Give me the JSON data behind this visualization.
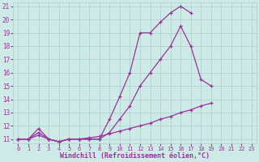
{
  "line1_x": [
    0,
    1,
    2,
    3,
    4,
    5,
    6,
    7,
    8,
    9,
    10,
    11,
    12,
    13,
    14,
    15,
    16,
    17
  ],
  "line1_y": [
    11,
    11,
    11.8,
    11,
    10.8,
    11,
    11,
    11,
    11,
    12.5,
    14.2,
    16.0,
    19.0,
    19.0,
    19.8,
    20.5,
    21.0,
    20.5
  ],
  "line2_x": [
    0,
    1,
    2,
    3,
    4,
    5,
    6,
    7,
    8,
    9,
    10,
    11,
    12,
    13,
    14,
    15,
    16,
    17,
    18,
    19,
    20,
    21,
    22
  ],
  "line2_y": [
    11,
    11,
    11.5,
    11,
    10.8,
    11,
    11,
    11,
    11,
    11.5,
    12.5,
    13.5,
    15.0,
    16.0,
    17.0,
    18.0,
    19.5,
    18.0,
    15.5,
    15.0,
    null,
    null,
    null
  ],
  "line3_x": [
    0,
    1,
    2,
    3,
    4,
    5,
    6,
    7,
    8,
    9,
    10,
    11,
    12,
    13,
    14,
    15,
    16,
    17,
    18,
    19,
    20,
    21,
    22,
    23
  ],
  "line3_y": [
    11,
    11,
    11.3,
    11,
    10.8,
    11,
    11,
    11.1,
    11.2,
    11.4,
    11.6,
    11.8,
    12.0,
    12.2,
    12.5,
    12.7,
    13.0,
    13.2,
    13.5,
    13.7,
    null,
    null,
    null,
    null
  ],
  "bg_color": "#ceeae6",
  "grid_color": "#aacfcb",
  "line_color": "#993399",
  "xlabel": "Windchill (Refroidissement éolien,°C)",
  "xlim_min": -0.5,
  "xlim_max": 23.5,
  "ylim_min": 10.7,
  "ylim_max": 21.3,
  "xticks": [
    0,
    1,
    2,
    3,
    4,
    5,
    6,
    7,
    8,
    9,
    10,
    11,
    12,
    13,
    14,
    15,
    16,
    17,
    18,
    19,
    20,
    21,
    22,
    23
  ],
  "yticks": [
    11,
    12,
    13,
    14,
    15,
    16,
    17,
    18,
    19,
    20,
    21
  ],
  "marker": "+",
  "markersize": 3,
  "linewidth": 0.9
}
